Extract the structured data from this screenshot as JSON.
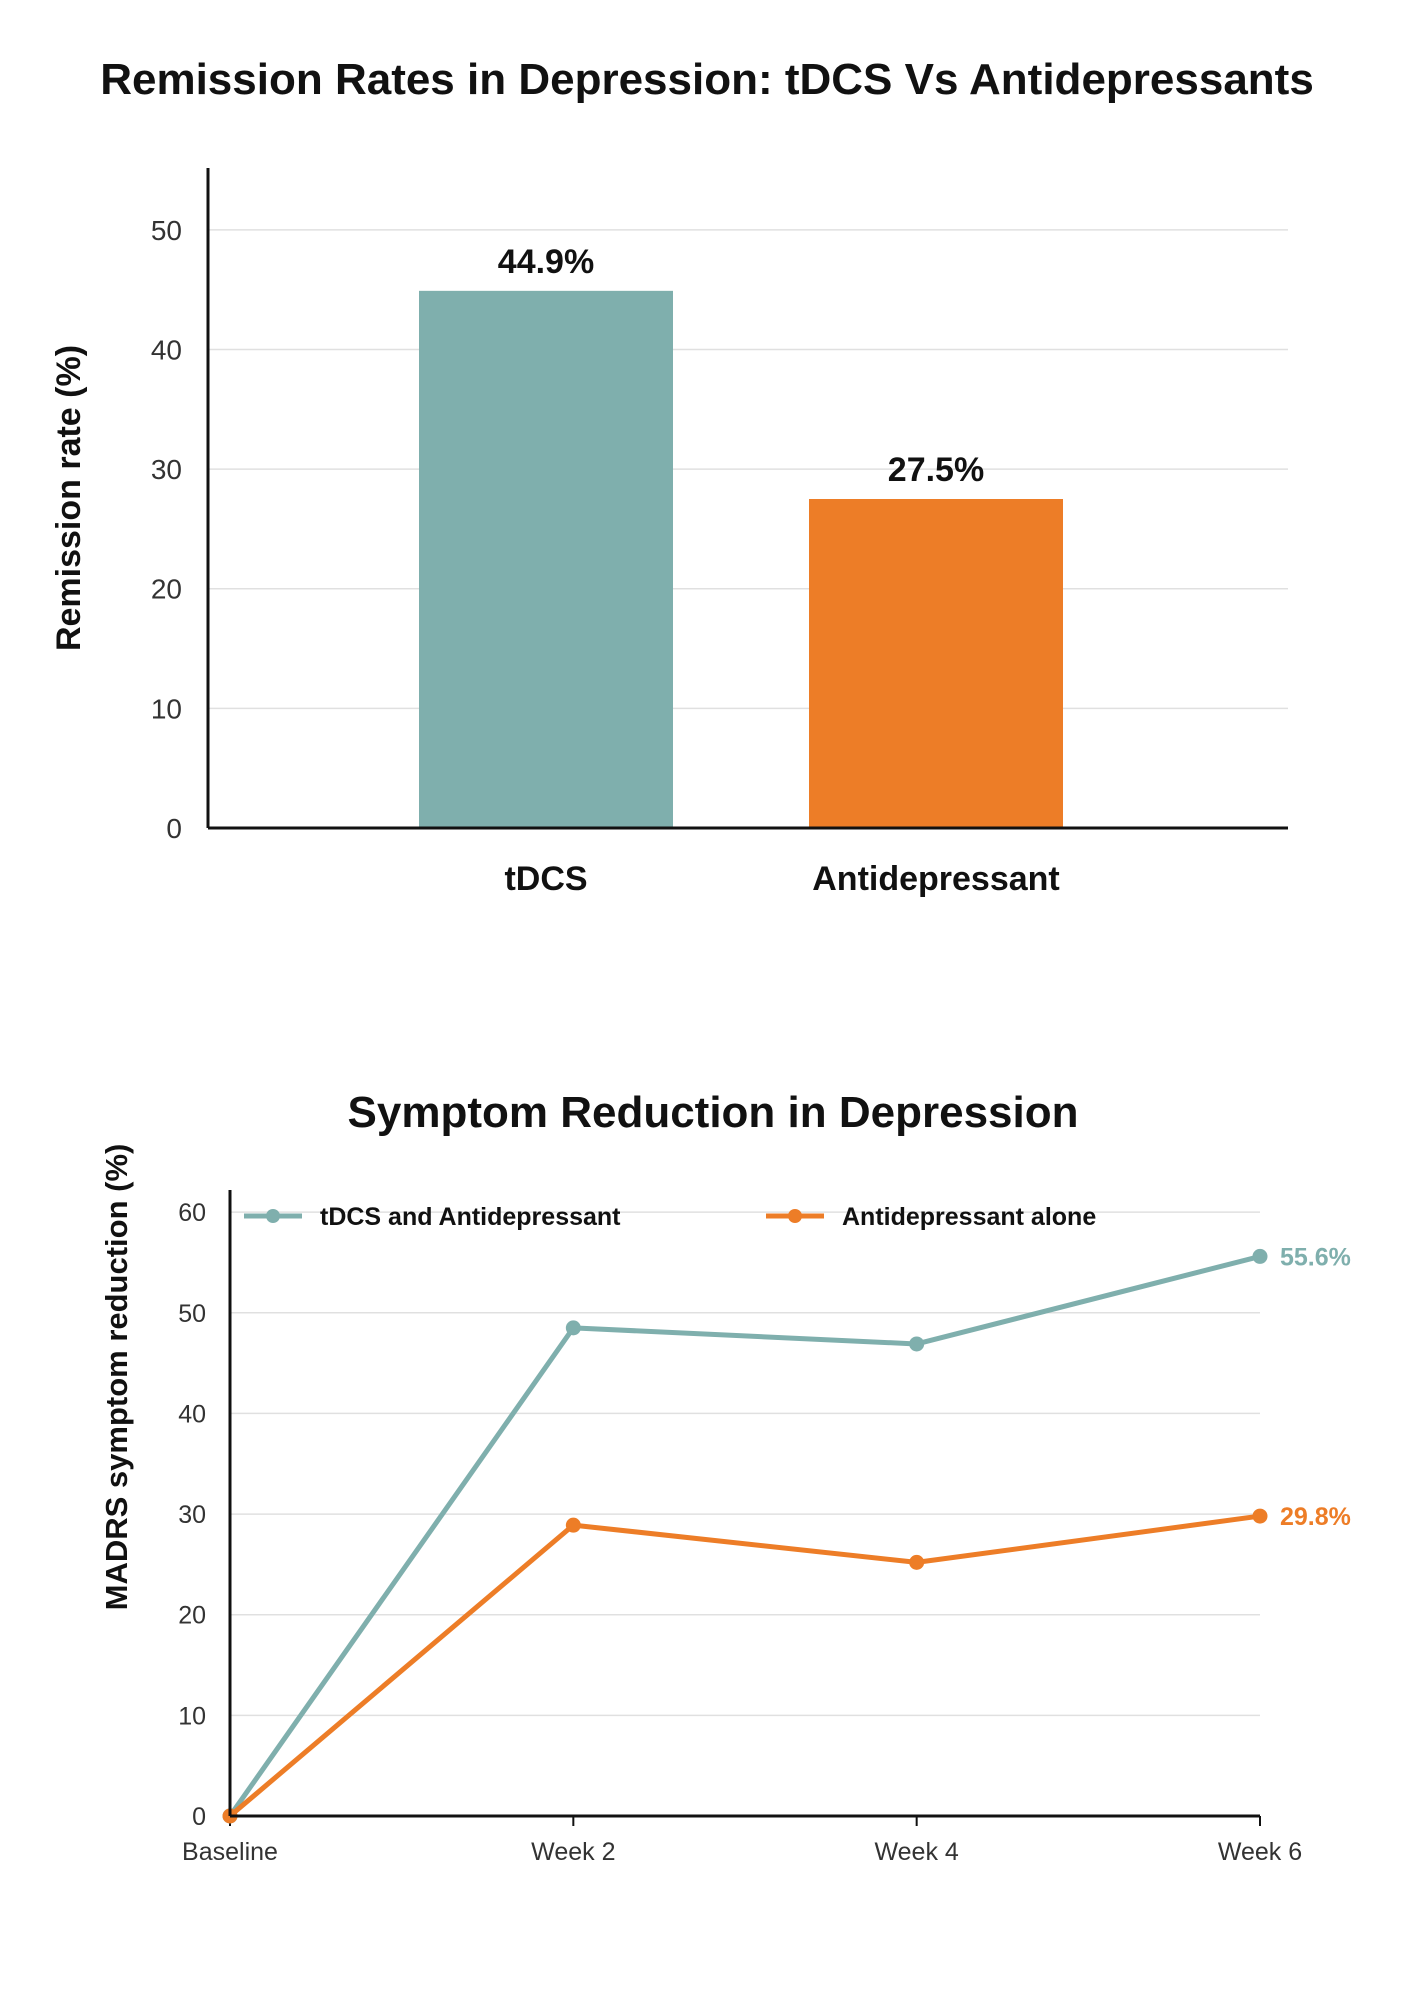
{
  "chart_data": [
    {
      "type": "bar",
      "title": "Remission Rates in Depression: tDCS Vs Antidepressants",
      "xlabel": "",
      "ylabel": "Remission rate (%)",
      "categories": [
        "tDCS",
        "Antidepressant"
      ],
      "values": [
        44.9,
        27.5
      ],
      "value_labels": [
        "44.9%",
        "27.5%"
      ],
      "colors": [
        "#7fafad",
        "#ed7d27"
      ],
      "ylim": [
        0,
        55
      ],
      "yticks": [
        0,
        10,
        20,
        30,
        40,
        50
      ],
      "grid": true
    },
    {
      "type": "line",
      "title": "Symptom Reduction in Depression",
      "xlabel": "",
      "ylabel": "MADRS symptom reduction (%)",
      "x": [
        "Baseline",
        "Week 2",
        "Week 4",
        "Week 6"
      ],
      "ylim": [
        0,
        62
      ],
      "yticks": [
        0,
        10,
        20,
        30,
        40,
        50,
        60
      ],
      "grid": true,
      "legend_position": "top",
      "series": [
        {
          "name": "tDCS and Antidepressant",
          "values": [
            0,
            48.5,
            46.9,
            55.6
          ],
          "color": "#7fafad",
          "end_label": "55.6%"
        },
        {
          "name": "Antidepressant alone",
          "values": [
            0,
            28.9,
            25.2,
            29.8
          ],
          "color": "#ed7d27",
          "end_label": "29.8%"
        }
      ]
    }
  ]
}
